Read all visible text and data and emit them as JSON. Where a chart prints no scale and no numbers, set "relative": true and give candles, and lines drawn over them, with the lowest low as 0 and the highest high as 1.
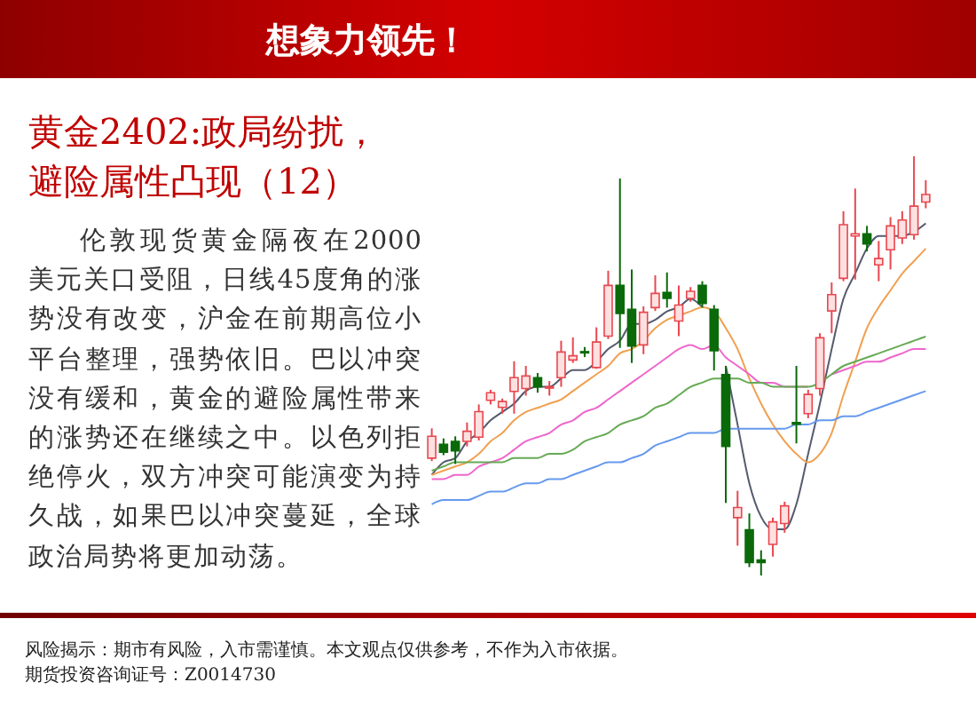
{
  "chart_data": {
    "type": "candlestick",
    "title": "黄金2402:政局纷扰，避险属性凸现（12）",
    "annotations": [
      "想象力领先！",
      "伦敦现货黄金隔夜在2000美元关口受阻，日线45度角的涨势没有改变，沪金在前期高位小平台整理，强势依旧。巴以冲突没有缓和，黄金的避险属性带来的涨势还在继续之中。以色列拒绝停火，双方冲突可能演变为持久战，如果巴以冲突蔓延，全球政治局势将更加动荡。",
      "风险揭示：期市有风险，入市需谨慎。本文观点仅供参考，不作为入市依据。",
      "期货投资咨询证号：Z0014730"
    ],
    "relative": true,
    "categories": [
      null,
      null,
      null,
      null,
      null,
      null,
      null,
      null,
      null,
      null,
      null,
      null,
      null,
      null,
      null,
      null,
      null,
      null,
      null,
      null,
      null,
      null,
      null,
      null,
      null,
      null,
      null,
      null,
      null,
      null,
      null,
      null,
      null,
      null,
      null,
      null,
      null,
      null,
      null,
      null,
      null,
      null,
      null
    ],
    "ohlc": [
      [
        0.28,
        0.351,
        0.273,
        0.332
      ],
      [
        0.313,
        0.327,
        0.287,
        0.294
      ],
      [
        0.32,
        0.332,
        0.266,
        0.297
      ],
      [
        0.32,
        0.365,
        0.308,
        0.344
      ],
      [
        0.33,
        0.408,
        0.322,
        0.391
      ],
      [
        0.418,
        0.443,
        0.408,
        0.436
      ],
      [
        0.401,
        0.422,
        0.386,
        0.415
      ],
      [
        0.439,
        0.511,
        0.386,
        0.472
      ],
      [
        0.446,
        0.5,
        0.429,
        0.476
      ],
      [
        0.472,
        0.483,
        0.436,
        0.45
      ],
      [
        0.447,
        0.464,
        0.429,
        0.45
      ],
      [
        0.472,
        0.56,
        0.45,
        0.533
      ],
      [
        0.514,
        0.568,
        0.507,
        0.524
      ],
      [
        0.534,
        0.545,
        0.521,
        0.531
      ],
      [
        0.496,
        0.592,
        0.493,
        0.557
      ],
      [
        0.571,
        0.727,
        0.564,
        0.692
      ],
      [
        0.692,
        0.947,
        0.543,
        0.625
      ],
      [
        0.635,
        0.73,
        0.507,
        0.547
      ],
      [
        0.55,
        0.642,
        0.528,
        0.628
      ],
      [
        0.639,
        0.716,
        0.631,
        0.673
      ],
      [
        0.675,
        0.723,
        0.639,
        0.661
      ],
      [
        0.607,
        0.692,
        0.571,
        0.645
      ],
      [
        0.661,
        0.688,
        0.653,
        0.678
      ],
      [
        0.692,
        0.702,
        0.639,
        0.649
      ],
      [
        0.635,
        0.645,
        0.489,
        0.536
      ],
      [
        0.479,
        0.5,
        0.173,
        0.308
      ],
      [
        0.138,
        0.202,
        0.071,
        0.162
      ],
      [
        0.109,
        0.148,
        0.02,
        0.031
      ],
      [
        0.037,
        0.06,
        0,
        0.031
      ],
      [
        0.074,
        0.138,
        0.045,
        0.128
      ],
      [
        0.124,
        0.176,
        0.102,
        0.166
      ],
      [
        0.365,
        0.5,
        0.315,
        0.361
      ],
      [
        0.386,
        0.443,
        0.375,
        0.432
      ],
      [
        0.446,
        0.578,
        0.429,
        0.567
      ],
      [
        0.631,
        0.699,
        0.578,
        0.67
      ],
      [
        0.709,
        0.869,
        0.702,
        0.837
      ],
      [
        0.81,
        0.923,
        0.706,
        0.815
      ],
      [
        0.815,
        0.834,
        0.773,
        0.791
      ],
      [
        0.741,
        0.798,
        0.702,
        0.756
      ],
      [
        0.777,
        0.855,
        0.73,
        0.834
      ],
      [
        0.805,
        0.869,
        0.791,
        0.848
      ],
      [
        0.813,
        1,
        0.801,
        0.881
      ],
      [
        0.891,
        0.943,
        0.876,
        0.909
      ]
    ],
    "colors": [
      "#e8474f",
      "#0a6a0a",
      "#0a6a0a",
      "#e8474f",
      "#e8474f",
      "#e8474f",
      "#e8474f",
      "#e8474f",
      "#e8474f",
      "#0a6a0a",
      "#e8474f",
      "#e8474f",
      "#e8474f",
      "#0a6a0a",
      "#e8474f",
      "#e8474f",
      "#0a6a0a",
      "#0a6a0a",
      "#e8474f",
      "#e8474f",
      "#0a6a0a",
      "#e8474f",
      "#e8474f",
      "#0a6a0a",
      "#0a6a0a",
      "#0a6a0a",
      "#e8474f",
      "#0a6a0a",
      "#0a6a0a",
      "#e8474f",
      "#e8474f",
      "#0a6a0a",
      "#e8474f",
      "#e8474f",
      "#e8474f",
      "#e8474f",
      "#e8474f",
      "#0a6a0a",
      "#e8474f",
      "#e8474f",
      "#e8474f",
      "#e8474f",
      "#e8474f"
    ],
    "series": [
      {
        "type": "line",
        "color": "#555a6e",
        "values": [
          0.24,
          0.27,
          0.28,
          0.32,
          0.34,
          0.37,
          0.39,
          0.41,
          0.44,
          0.45,
          0.45,
          0.47,
          0.49,
          0.49,
          0.51,
          0.54,
          0.56,
          0.6,
          0.6,
          0.61,
          0.63,
          0.64,
          0.66,
          0.64,
          null,
          0.5,
          0.36,
          0.22,
          0.14,
          0.11,
          0.11,
          0.17,
          0.29,
          0.41,
          0.54,
          0.66,
          0.72,
          0.78,
          0.81,
          0.81,
          0.81,
          0.82,
          0.84
        ]
      },
      {
        "type": "line",
        "color": "#f0a050",
        "values": [
          0.24,
          0.25,
          0.26,
          0.27,
          0.29,
          0.32,
          0.34,
          0.37,
          0.39,
          0.4,
          0.41,
          0.42,
          0.44,
          0.46,
          0.48,
          0.5,
          0.53,
          0.54,
          0.56,
          0.59,
          0.61,
          0.62,
          0.63,
          0.64,
          0.63,
          0.59,
          0.54,
          0.47,
          0.41,
          0.36,
          0.32,
          0.29,
          0.27,
          0.29,
          0.34,
          0.43,
          0.51,
          0.59,
          0.64,
          0.68,
          0.72,
          0.75,
          0.78
        ]
      },
      {
        "type": "line",
        "color": "#ee66cc",
        "values": [
          0.23,
          0.23,
          0.24,
          0.24,
          0.26,
          0.27,
          0.28,
          0.3,
          0.32,
          0.33,
          0.34,
          0.36,
          0.37,
          0.39,
          0.4,
          0.42,
          0.44,
          0.46,
          0.48,
          0.5,
          0.52,
          0.54,
          0.55,
          0.54,
          0.55,
          0.52,
          0.5,
          0.48,
          0.46,
          0.46,
          0.45,
          0.45,
          0.45,
          null,
          0.48,
          0.49,
          0.5,
          0.51,
          0.51,
          0.52,
          0.53,
          0.54,
          0.54
        ]
      },
      {
        "type": "line",
        "color": "#66aa55",
        "values": [
          0.25,
          0.26,
          0.27,
          0.27,
          0.27,
          0.27,
          0.27,
          0.28,
          0.28,
          0.28,
          0.29,
          0.29,
          0.3,
          0.32,
          0.33,
          0.34,
          0.36,
          0.37,
          0.38,
          0.4,
          0.41,
          0.43,
          0.45,
          0.46,
          0.47,
          0.47,
          0.47,
          0.46,
          0.46,
          0.45,
          0.45,
          0.45,
          0.45,
          0.46,
          0.48,
          0.5,
          0.51,
          0.52,
          0.53,
          0.54,
          0.55,
          0.56,
          0.57
        ]
      },
      {
        "type": "line",
        "color": "#6699ee",
        "values": [
          0.17,
          0.18,
          0.18,
          0.18,
          0.19,
          0.2,
          0.2,
          0.21,
          0.22,
          0.22,
          0.23,
          0.23,
          0.24,
          0.25,
          0.26,
          0.27,
          0.27,
          0.28,
          0.29,
          0.31,
          0.32,
          0.33,
          0.34,
          0.34,
          0.34,
          0.35,
          0.35,
          0.35,
          0.35,
          0.35,
          0.35,
          0.36,
          0.36,
          0.37,
          0.37,
          0.38,
          0.38,
          0.39,
          0.4,
          0.41,
          0.42,
          0.43,
          0.44
        ]
      }
    ]
  }
}
